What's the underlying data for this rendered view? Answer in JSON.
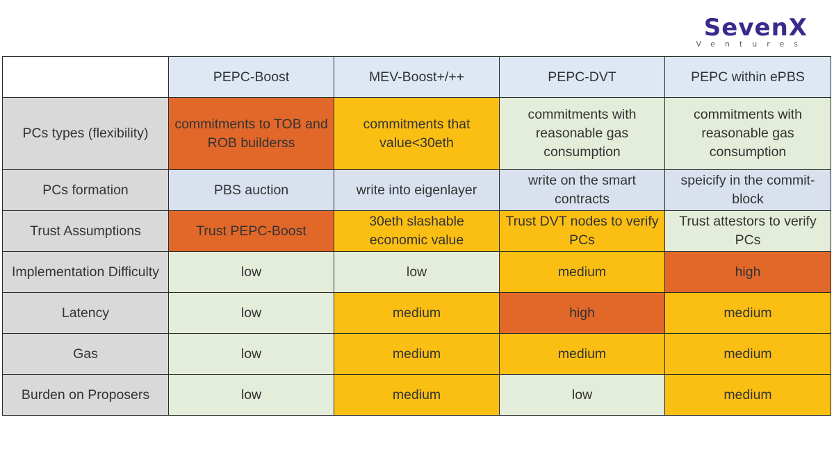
{
  "logo": {
    "brand": "SevenX",
    "sub": "Ventures"
  },
  "columns": [
    "",
    "PEPC-Boost",
    "MEV-Boost+/++",
    "PEPC-DVT",
    "PEPC within ePBS"
  ],
  "rows": [
    {
      "label": "PCs types (flexibility)",
      "cells": [
        "commitments to TOB and ROB builderss",
        "commitments that value<30eth",
        "commitments with reasonable gas consumption",
        "commitments with reasonable gas consumption"
      ]
    },
    {
      "label": "PCs formation",
      "cells": [
        "PBS auction",
        "write into eigenlayer",
        "write on the smart contracts",
        "speicify in the commit-block"
      ]
    },
    {
      "label": "Trust Assumptions",
      "cells": [
        "Trust PEPC-Boost",
        "30eth slashable economic value",
        "Trust DVT nodes to verify PCs",
        "Trust attestors to verify PCs"
      ]
    },
    {
      "label": "Implementation Difficulty",
      "cells": [
        "low",
        "low",
        "medium",
        "high"
      ]
    },
    {
      "label": "Latency",
      "cells": [
        "low",
        "medium",
        "high",
        "medium"
      ]
    },
    {
      "label": "Gas",
      "cells": [
        "low",
        "medium",
        "medium",
        "medium"
      ]
    },
    {
      "label": "Burden on Proposers",
      "cells": [
        "low",
        "medium",
        "low",
        "medium"
      ]
    }
  ],
  "colors": {
    "row_header": "#d9d9d9",
    "column_header": "#dde8f4",
    "light_green": "#e3edd9",
    "lavender": "#d9e0ee",
    "amber": "#fbbf13",
    "orange": "#e2682a",
    "logo": "#3a2a8c"
  }
}
